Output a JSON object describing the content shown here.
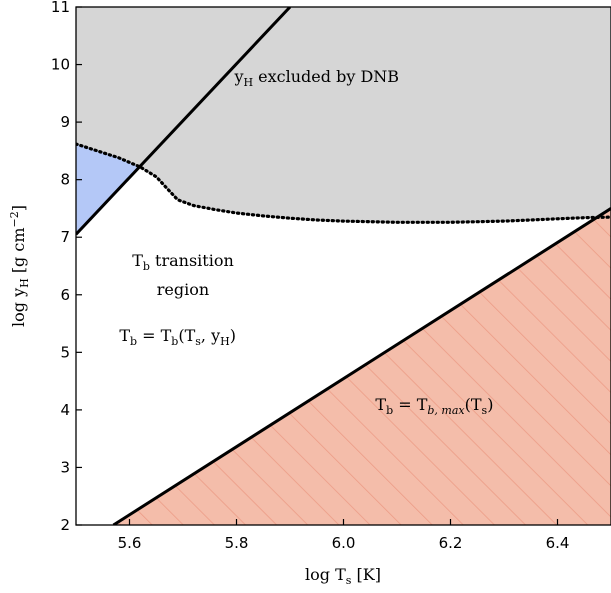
{
  "chart_data": {
    "type": "area",
    "xlabel": "log T",
    "xlabel_sub": "s",
    "xlabel_unit": " [K]",
    "ylabel": "log y",
    "ylabel_sub": "H",
    "ylabel_unit": " [g cm",
    "ylabel_sup": "−2",
    "ylabel_end": "]",
    "xlim": [
      5.5,
      6.5
    ],
    "ylim": [
      2,
      11
    ],
    "xticks": [
      5.6,
      5.8,
      6.0,
      6.2,
      6.4
    ],
    "xtick_labels": [
      "5.6",
      "5.8",
      "6.0",
      "6.2",
      "6.4"
    ],
    "yticks": [
      2,
      3,
      4,
      5,
      6,
      7,
      8,
      9,
      10,
      11
    ],
    "ytick_labels": [
      "2",
      "3",
      "4",
      "5",
      "6",
      "7",
      "8",
      "9",
      "10",
      "11"
    ],
    "lines": {
      "upper_solid": {
        "x": [
          5.5,
          5.9
        ],
        "y": [
          7.05,
          11.0
        ],
        "style": "solid"
      },
      "lower_solid": {
        "x": [
          5.57,
          6.5
        ],
        "y": [
          2.0,
          7.5
        ],
        "style": "solid"
      },
      "dnb_dotted": {
        "style": "dotted",
        "x": [
          5.5,
          5.54,
          5.58,
          5.62,
          5.65,
          5.67,
          5.69,
          5.72,
          5.76,
          5.8,
          5.85,
          5.9,
          5.95,
          6.0,
          6.05,
          6.1,
          6.15,
          6.2,
          6.25,
          6.3,
          6.35,
          6.4,
          6.45,
          6.5
        ],
        "y": [
          8.62,
          8.5,
          8.38,
          8.22,
          8.05,
          7.85,
          7.65,
          7.55,
          7.48,
          7.42,
          7.37,
          7.33,
          7.3,
          7.28,
          7.27,
          7.26,
          7.26,
          7.26,
          7.27,
          7.28,
          7.3,
          7.32,
          7.34,
          7.35
        ]
      }
    },
    "regions": [
      {
        "name": "dnb-excluded-region",
        "color": "#d6d6d6"
      },
      {
        "name": "blue-region",
        "color": "#b4c8f7"
      },
      {
        "name": "red-region",
        "color": "#f4bdaa",
        "hatch_color": "#ec9c86"
      }
    ],
    "annotations": {
      "dnb": {
        "pre": "y",
        "sub": "H",
        "post": " excluded by DNB",
        "x": 5.95,
        "y": 9.7
      },
      "transition_1": {
        "pre": "T",
        "sub": "b",
        "post": " transition",
        "x": 5.7,
        "y": 6.5
      },
      "transition_2": {
        "text": "region",
        "x": 5.7,
        "y": 6.0
      },
      "tb_eq": {
        "p1": "T",
        "s1": "b",
        "p2": " = T",
        "s2": "b",
        "p3": "(T",
        "s3": "s",
        "p4": ", y",
        "s4": "H",
        "p5": ")",
        "x": 5.69,
        "y": 5.2
      },
      "tb_max": {
        "p1": "T",
        "s1": "b",
        "p2": " = T",
        "s2": "b, max",
        "p3": "(T",
        "s3": "s",
        "p4": ")",
        "x": 6.17,
        "y": 4.0
      }
    }
  }
}
